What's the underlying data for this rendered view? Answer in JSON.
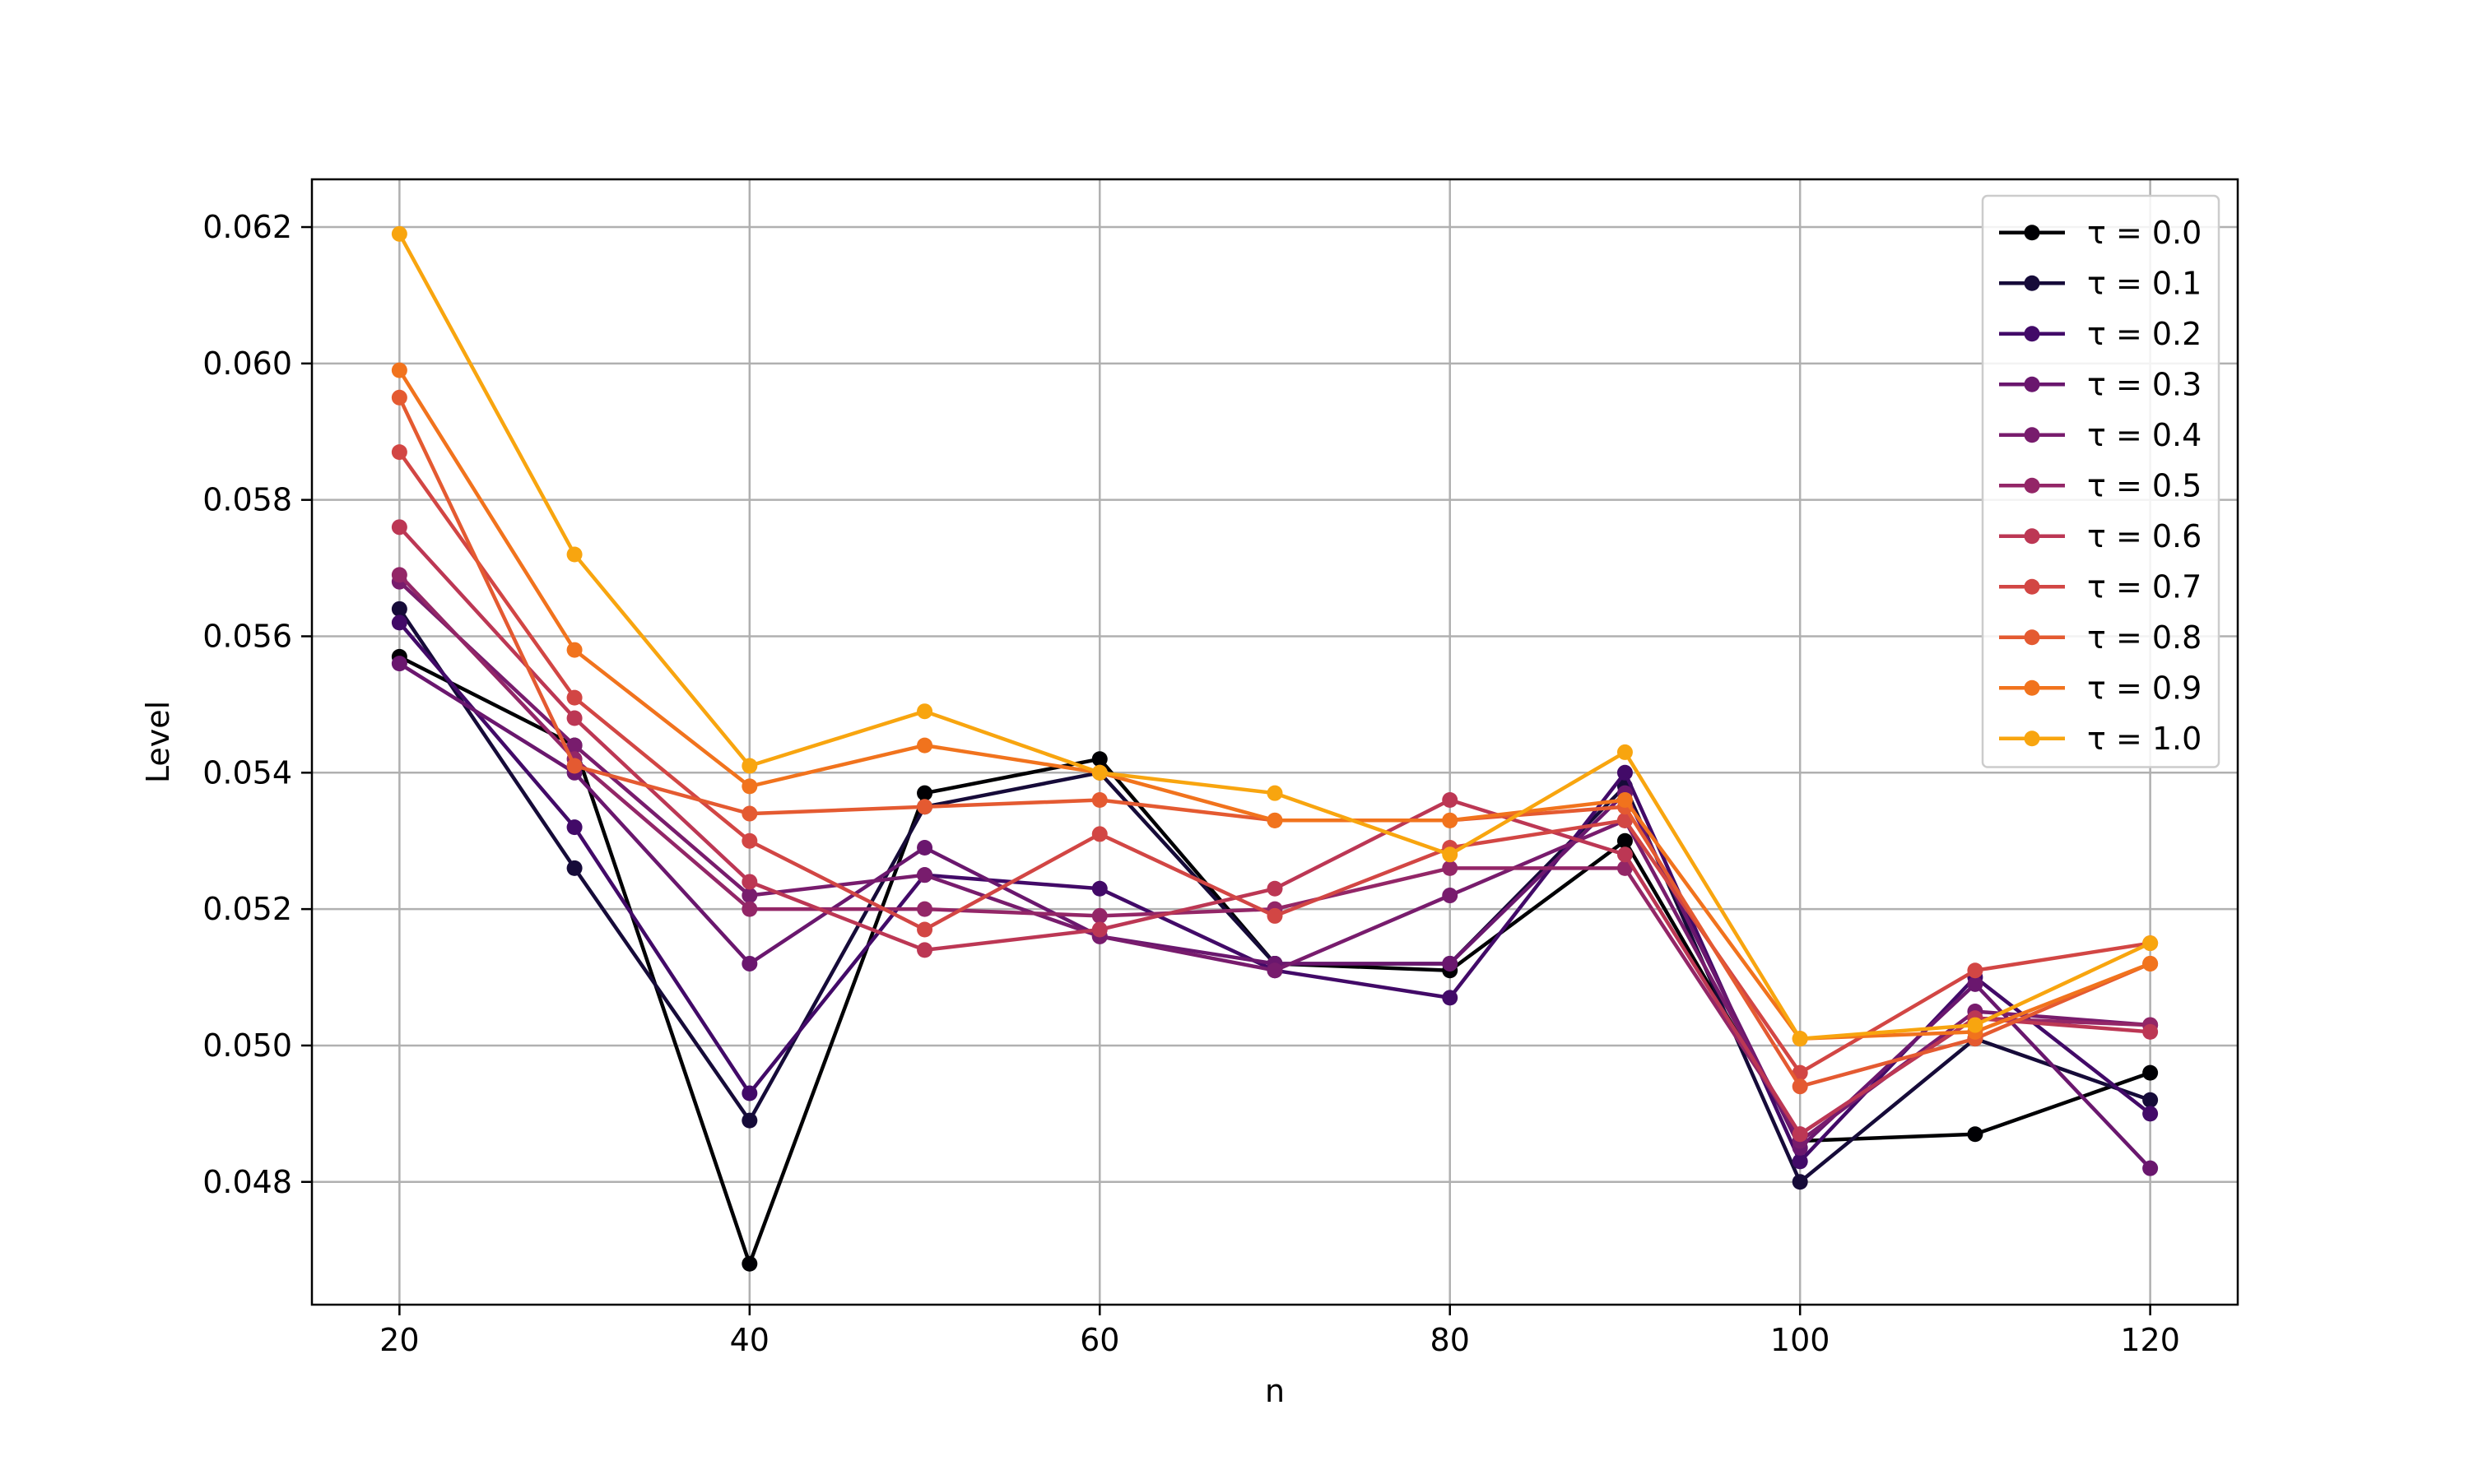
{
  "chart_data": {
    "type": "line",
    "title": "",
    "xlabel": "n",
    "ylabel": "Level",
    "xlim": [
      15,
      125
    ],
    "ylim": [
      0.0462,
      0.0627
    ],
    "grid": true,
    "legend_position": "top-right",
    "x": [
      20,
      30,
      40,
      50,
      60,
      70,
      80,
      90,
      100,
      110,
      120
    ],
    "x_ticks": [
      20,
      40,
      60,
      80,
      100,
      120
    ],
    "x_tick_labels": [
      "20",
      "40",
      "60",
      "80",
      "100",
      "120"
    ],
    "y_ticks": [
      0.048,
      0.05,
      0.052,
      0.054,
      0.056,
      0.058,
      0.06,
      0.062
    ],
    "y_tick_labels": [
      "0.048",
      "0.050",
      "0.052",
      "0.054",
      "0.056",
      "0.058",
      "0.060",
      "0.062"
    ],
    "series": [
      {
        "name": "τ = 0.0",
        "color": "#000004",
        "values": [
          0.0557,
          0.0544,
          0.0468,
          0.0537,
          0.0542,
          0.0512,
          0.0511,
          0.053,
          0.0486,
          0.0487,
          0.0496
        ]
      },
      {
        "name": "τ = 0.1",
        "color": "#160b39",
        "values": [
          0.0564,
          0.0526,
          0.0489,
          0.0535,
          0.054,
          0.0512,
          0.0512,
          0.0538,
          0.048,
          0.0501,
          0.0492
        ]
      },
      {
        "name": "τ = 0.2",
        "color": "#420a68",
        "values": [
          0.0562,
          0.0532,
          0.0493,
          0.0525,
          0.0523,
          0.0511,
          0.0507,
          0.054,
          0.0483,
          0.051,
          0.049
        ]
      },
      {
        "name": "τ = 0.3",
        "color": "#6a176e",
        "values": [
          0.0556,
          0.054,
          0.0512,
          0.0529,
          0.0516,
          0.0512,
          0.0512,
          0.0537,
          0.0485,
          0.0509,
          0.0482
        ]
      },
      {
        "name": "τ = 0.4",
        "color": "#781c6d",
        "values": [
          0.0568,
          0.0544,
          0.0522,
          0.0525,
          0.0516,
          0.0511,
          0.0522,
          0.0533,
          0.0486,
          0.0505,
          0.0503
        ]
      },
      {
        "name": "τ = 0.5",
        "color": "#932667",
        "values": [
          0.0569,
          0.0542,
          0.052,
          0.052,
          0.0519,
          0.052,
          0.0526,
          0.0526,
          0.0487,
          0.0504,
          0.0503
        ]
      },
      {
        "name": "τ = 0.6",
        "color": "#bc3754",
        "values": [
          0.0576,
          0.0548,
          0.0524,
          0.0514,
          0.0517,
          0.0523,
          0.0536,
          0.0528,
          0.0487,
          0.0504,
          0.0502
        ]
      },
      {
        "name": "τ = 0.7",
        "color": "#d24644",
        "values": [
          0.0587,
          0.0551,
          0.053,
          0.0517,
          0.0531,
          0.0519,
          0.0529,
          0.0533,
          0.0496,
          0.0511,
          0.0515
        ]
      },
      {
        "name": "τ = 0.8",
        "color": "#e45a31",
        "values": [
          0.0595,
          0.0541,
          0.0534,
          0.0535,
          0.0536,
          0.0533,
          0.0533,
          0.0535,
          0.0494,
          0.0501,
          0.0512
        ]
      },
      {
        "name": "τ = 0.9",
        "color": "#f1731d",
        "values": [
          0.0599,
          0.0558,
          0.0538,
          0.0544,
          0.054,
          0.0533,
          0.0533,
          0.0536,
          0.0501,
          0.0502,
          0.0512
        ]
      },
      {
        "name": "τ = 1.0",
        "color": "#f8a50f",
        "values": [
          0.0619,
          0.0572,
          0.0541,
          0.0549,
          0.054,
          0.0537,
          0.0528,
          0.0543,
          0.0501,
          0.0503,
          0.0515
        ]
      }
    ]
  }
}
